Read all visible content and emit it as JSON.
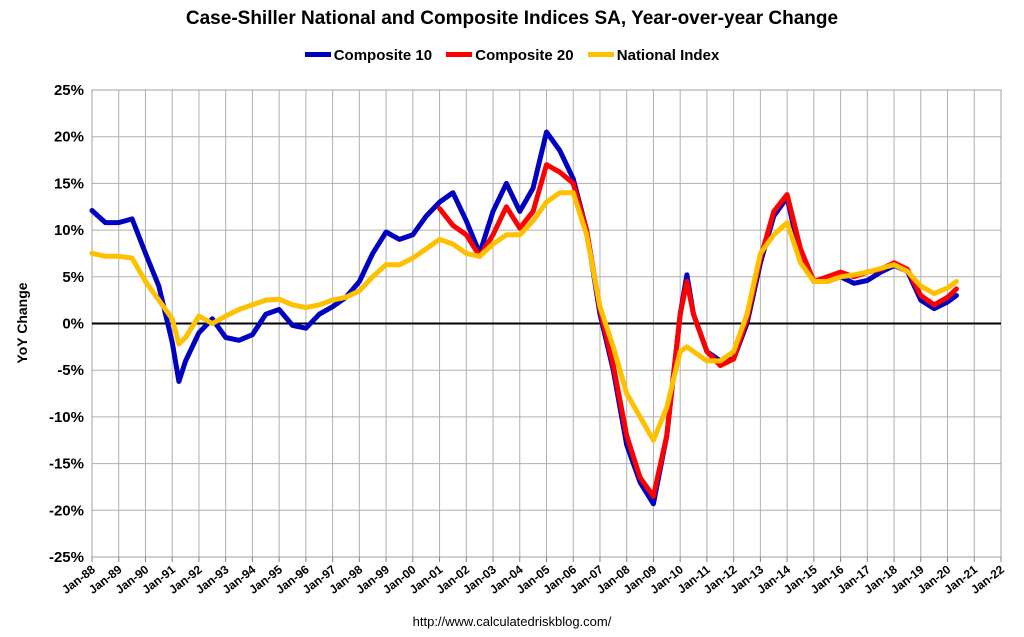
{
  "chart_data": {
    "type": "line",
    "title": "Case-Shiller National and Composite Indices SA, Year-over-year Change",
    "ylabel": "YoY Change",
    "xlabel": "",
    "ylim": [
      -25,
      25
    ],
    "xlim": [
      "Jan-88",
      "Jan-22"
    ],
    "y_tick_labels": [
      "25%",
      "20%",
      "15%",
      "10%",
      "5%",
      "0%",
      "-5%",
      "-10%",
      "-15%",
      "-20%",
      "-25%"
    ],
    "x_tick_labels": [
      "Jan-88",
      "Jan-89",
      "Jan-90",
      "Jan-91",
      "Jan-92",
      "Jan-93",
      "Jan-94",
      "Jan-95",
      "Jan-96",
      "Jan-97",
      "Jan-98",
      "Jan-99",
      "Jan-00",
      "Jan-01",
      "Jan-02",
      "Jan-03",
      "Jan-04",
      "Jan-05",
      "Jan-06",
      "Jan-07",
      "Jan-08",
      "Jan-09",
      "Jan-10",
      "Jan-11",
      "Jan-12",
      "Jan-13",
      "Jan-14",
      "Jan-15",
      "Jan-16",
      "Jan-17",
      "Jan-18",
      "Jan-19",
      "Jan-20",
      "Jan-21",
      "Jan-22"
    ],
    "grid": true,
    "legend_position": "top",
    "source": "http://www.calculatedriskblog.com/",
    "series": [
      {
        "name": "Composite 10",
        "color": "#0000C0",
        "points": [
          [
            "Jan-88",
            12.1
          ],
          [
            "Jul-88",
            10.8
          ],
          [
            "Jan-89",
            10.8
          ],
          [
            "Jul-89",
            11.2
          ],
          [
            "Jan-90",
            7.5
          ],
          [
            "Jul-90",
            4.0
          ],
          [
            "Jan-91",
            -2.0
          ],
          [
            "Apr-91",
            -6.2
          ],
          [
            "Jul-91",
            -4.0
          ],
          [
            "Jan-92",
            -1.0
          ],
          [
            "Jul-92",
            0.5
          ],
          [
            "Jan-93",
            -1.5
          ],
          [
            "Jul-93",
            -1.8
          ],
          [
            "Jan-94",
            -1.2
          ],
          [
            "Jul-94",
            1.0
          ],
          [
            "Jan-95",
            1.5
          ],
          [
            "Jul-95",
            -0.2
          ],
          [
            "Jan-96",
            -0.5
          ],
          [
            "Jul-96",
            1.0
          ],
          [
            "Jan-97",
            1.8
          ],
          [
            "Jul-97",
            2.8
          ],
          [
            "Jan-98",
            4.5
          ],
          [
            "Jul-98",
            7.5
          ],
          [
            "Jan-99",
            9.8
          ],
          [
            "Jul-99",
            9.0
          ],
          [
            "Jan-00",
            9.5
          ],
          [
            "Jul-00",
            11.5
          ],
          [
            "Jan-01",
            13.0
          ],
          [
            "Jul-01",
            14.0
          ],
          [
            "Jan-02",
            11.0
          ],
          [
            "Jul-02",
            7.5
          ],
          [
            "Jan-03",
            12.0
          ],
          [
            "Jul-03",
            15.0
          ],
          [
            "Jan-04",
            12.0
          ],
          [
            "Jul-04",
            14.5
          ],
          [
            "Jan-05",
            20.5
          ],
          [
            "Jul-05",
            18.5
          ],
          [
            "Jan-06",
            15.5
          ],
          [
            "Jul-06",
            10.0
          ],
          [
            "Jan-07",
            1.0
          ],
          [
            "Jul-07",
            -5.0
          ],
          [
            "Jan-08",
            -13.0
          ],
          [
            "Jul-08",
            -17.0
          ],
          [
            "Jan-09",
            -19.3
          ],
          [
            "Jul-09",
            -12.0
          ],
          [
            "Jan-10",
            1.0
          ],
          [
            "Apr-10",
            5.2
          ],
          [
            "Jul-10",
            1.0
          ],
          [
            "Jan-11",
            -3.0
          ],
          [
            "Jul-11",
            -4.0
          ],
          [
            "Jan-12",
            -3.8
          ],
          [
            "Jul-12",
            0.0
          ],
          [
            "Jan-13",
            6.5
          ],
          [
            "Jul-13",
            11.5
          ],
          [
            "Jan-14",
            13.5
          ],
          [
            "Jul-14",
            7.0
          ],
          [
            "Jan-15",
            4.5
          ],
          [
            "Jul-15",
            4.5
          ],
          [
            "Jan-16",
            5.0
          ],
          [
            "Jul-16",
            4.3
          ],
          [
            "Jan-17",
            4.6
          ],
          [
            "Jul-17",
            5.5
          ],
          [
            "Jan-18",
            6.2
          ],
          [
            "Jul-18",
            5.6
          ],
          [
            "Jan-19",
            2.5
          ],
          [
            "Jul-19",
            1.6
          ],
          [
            "Jan-20",
            2.3
          ],
          [
            "May-20",
            3.0
          ]
        ]
      },
      {
        "name": "Composite 20",
        "color": "#FF0000",
        "points": [
          [
            "Jan-01",
            12.3
          ],
          [
            "Jul-01",
            10.5
          ],
          [
            "Jan-02",
            9.5
          ],
          [
            "Jul-02",
            7.2
          ],
          [
            "Jan-03",
            9.5
          ],
          [
            "Jul-03",
            12.5
          ],
          [
            "Jan-04",
            10.2
          ],
          [
            "Jul-04",
            12.0
          ],
          [
            "Jan-05",
            17.0
          ],
          [
            "Jul-05",
            16.2
          ],
          [
            "Jan-06",
            15.0
          ],
          [
            "Jul-06",
            10.0
          ],
          [
            "Jan-07",
            1.5
          ],
          [
            "Jul-07",
            -4.5
          ],
          [
            "Jan-08",
            -12.0
          ],
          [
            "Jul-08",
            -16.5
          ],
          [
            "Jan-09",
            -18.5
          ],
          [
            "Jul-09",
            -12.0
          ],
          [
            "Jan-10",
            1.0
          ],
          [
            "Apr-10",
            4.5
          ],
          [
            "Jul-10",
            1.0
          ],
          [
            "Jan-11",
            -3.0
          ],
          [
            "Jul-11",
            -4.5
          ],
          [
            "Jan-12",
            -3.8
          ],
          [
            "Jul-12",
            0.5
          ],
          [
            "Jan-13",
            7.0
          ],
          [
            "Jul-13",
            12.0
          ],
          [
            "Jan-14",
            13.8
          ],
          [
            "Jul-14",
            8.0
          ],
          [
            "Jan-15",
            4.5
          ],
          [
            "Jul-15",
            5.0
          ],
          [
            "Jan-16",
            5.5
          ],
          [
            "Jul-16",
            5.0
          ],
          [
            "Jan-17",
            5.5
          ],
          [
            "Jul-17",
            5.8
          ],
          [
            "Jan-18",
            6.5
          ],
          [
            "Jul-18",
            5.8
          ],
          [
            "Jan-19",
            3.0
          ],
          [
            "Jul-19",
            2.0
          ],
          [
            "Jan-20",
            2.8
          ],
          [
            "May-20",
            3.7
          ]
        ]
      },
      {
        "name": "National Index",
        "color": "#FFC000",
        "points": [
          [
            "Jan-88",
            7.5
          ],
          [
            "Jul-88",
            7.2
          ],
          [
            "Jan-89",
            7.2
          ],
          [
            "Jul-89",
            7.0
          ],
          [
            "Jan-90",
            4.5
          ],
          [
            "Jul-90",
            2.5
          ],
          [
            "Jan-91",
            0.5
          ],
          [
            "Apr-91",
            -2.2
          ],
          [
            "Jul-91",
            -1.5
          ],
          [
            "Jan-92",
            0.8
          ],
          [
            "Jul-92",
            0.0
          ],
          [
            "Jan-93",
            0.8
          ],
          [
            "Jul-93",
            1.5
          ],
          [
            "Jan-94",
            2.0
          ],
          [
            "Jul-94",
            2.5
          ],
          [
            "Jan-95",
            2.6
          ],
          [
            "Jul-95",
            2.0
          ],
          [
            "Jan-96",
            1.7
          ],
          [
            "Jul-96",
            2.0
          ],
          [
            "Jan-97",
            2.5
          ],
          [
            "Jul-97",
            2.8
          ],
          [
            "Jan-98",
            3.5
          ],
          [
            "Jul-98",
            5.0
          ],
          [
            "Jan-99",
            6.3
          ],
          [
            "Jul-99",
            6.3
          ],
          [
            "Jan-00",
            7.0
          ],
          [
            "Jul-00",
            8.0
          ],
          [
            "Jan-01",
            9.0
          ],
          [
            "Jul-01",
            8.5
          ],
          [
            "Jan-02",
            7.5
          ],
          [
            "Jul-02",
            7.2
          ],
          [
            "Jan-03",
            8.5
          ],
          [
            "Jul-03",
            9.5
          ],
          [
            "Jan-04",
            9.5
          ],
          [
            "Jul-04",
            11.0
          ],
          [
            "Jan-05",
            13.0
          ],
          [
            "Jul-05",
            14.0
          ],
          [
            "Jan-06",
            14.0
          ],
          [
            "Jul-06",
            9.5
          ],
          [
            "Jan-07",
            1.8
          ],
          [
            "Jul-07",
            -2.5
          ],
          [
            "Jan-08",
            -7.5
          ],
          [
            "Jul-08",
            -10.0
          ],
          [
            "Jan-09",
            -12.5
          ],
          [
            "Jul-09",
            -9.0
          ],
          [
            "Jan-10",
            -3.0
          ],
          [
            "Apr-10",
            -2.5
          ],
          [
            "Jul-10",
            -3.0
          ],
          [
            "Jan-11",
            -4.0
          ],
          [
            "Jul-11",
            -4.0
          ],
          [
            "Jan-12",
            -3.0
          ],
          [
            "Jul-12",
            1.0
          ],
          [
            "Jan-13",
            7.5
          ],
          [
            "Jul-13",
            9.5
          ],
          [
            "Jan-14",
            10.8
          ],
          [
            "Jul-14",
            6.5
          ],
          [
            "Jan-15",
            4.5
          ],
          [
            "Jul-15",
            4.5
          ],
          [
            "Jan-16",
            5.0
          ],
          [
            "Jul-16",
            5.2
          ],
          [
            "Jan-17",
            5.5
          ],
          [
            "Jul-17",
            5.9
          ],
          [
            "Jan-18",
            6.3
          ],
          [
            "Jul-18",
            5.6
          ],
          [
            "Jan-19",
            4.0
          ],
          [
            "Jul-19",
            3.2
          ],
          [
            "Jan-20",
            3.8
          ],
          [
            "May-20",
            4.5
          ]
        ]
      }
    ]
  }
}
